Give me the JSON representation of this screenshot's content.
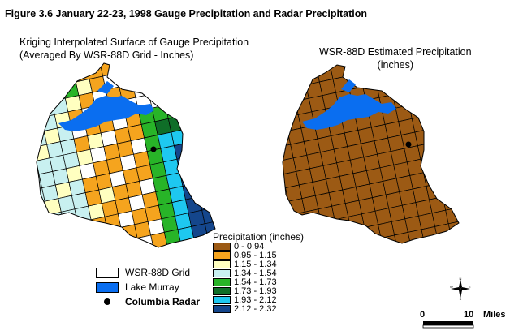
{
  "figure_title": "Figure 3.6   January 22-23, 1998 Gauge Precipitation and  Radar Precipitation",
  "left_map": {
    "title_line1": "Kriging Interpolated Surface of Gauge Precipitation",
    "title_line2": "(Averaged By WSR-88D Grid   -  Inches)"
  },
  "right_map": {
    "title_line1": "WSR-88D Estimated Precipitation",
    "title_line2": "(inches)"
  },
  "legend": {
    "title": "Precipitation (inches)",
    "classes": [
      {
        "label": "0 - 0.94",
        "color": "#9c5a14"
      },
      {
        "label": "0.95 - 1.15",
        "color": "#f5a41e"
      },
      {
        "label": "1.15 - 1.34",
        "color": "#ffffc0"
      },
      {
        "label": "1.34 - 1.54",
        "color": "#c8f0f0"
      },
      {
        "label": "1.54 - 1.73",
        "color": "#28b428"
      },
      {
        "label": "1.73 - 1.93",
        "color": "#0f6e28"
      },
      {
        "label": "1.93 - 2.12",
        "color": "#1ec8f0"
      },
      {
        "label": "2.12 - 2.32",
        "color": "#14468c"
      }
    ]
  },
  "key": {
    "grid_label": "WSR-88D Grid",
    "lake_label": "Lake Murray",
    "radar_label": "Columbia Radar",
    "lake_color": "#0a6ef0"
  },
  "scale_bar": {
    "start": "0",
    "mid": "10",
    "unit": "Miles"
  },
  "compass": {
    "n": "N",
    "s": "S",
    "e": "E",
    "w": "W"
  }
}
